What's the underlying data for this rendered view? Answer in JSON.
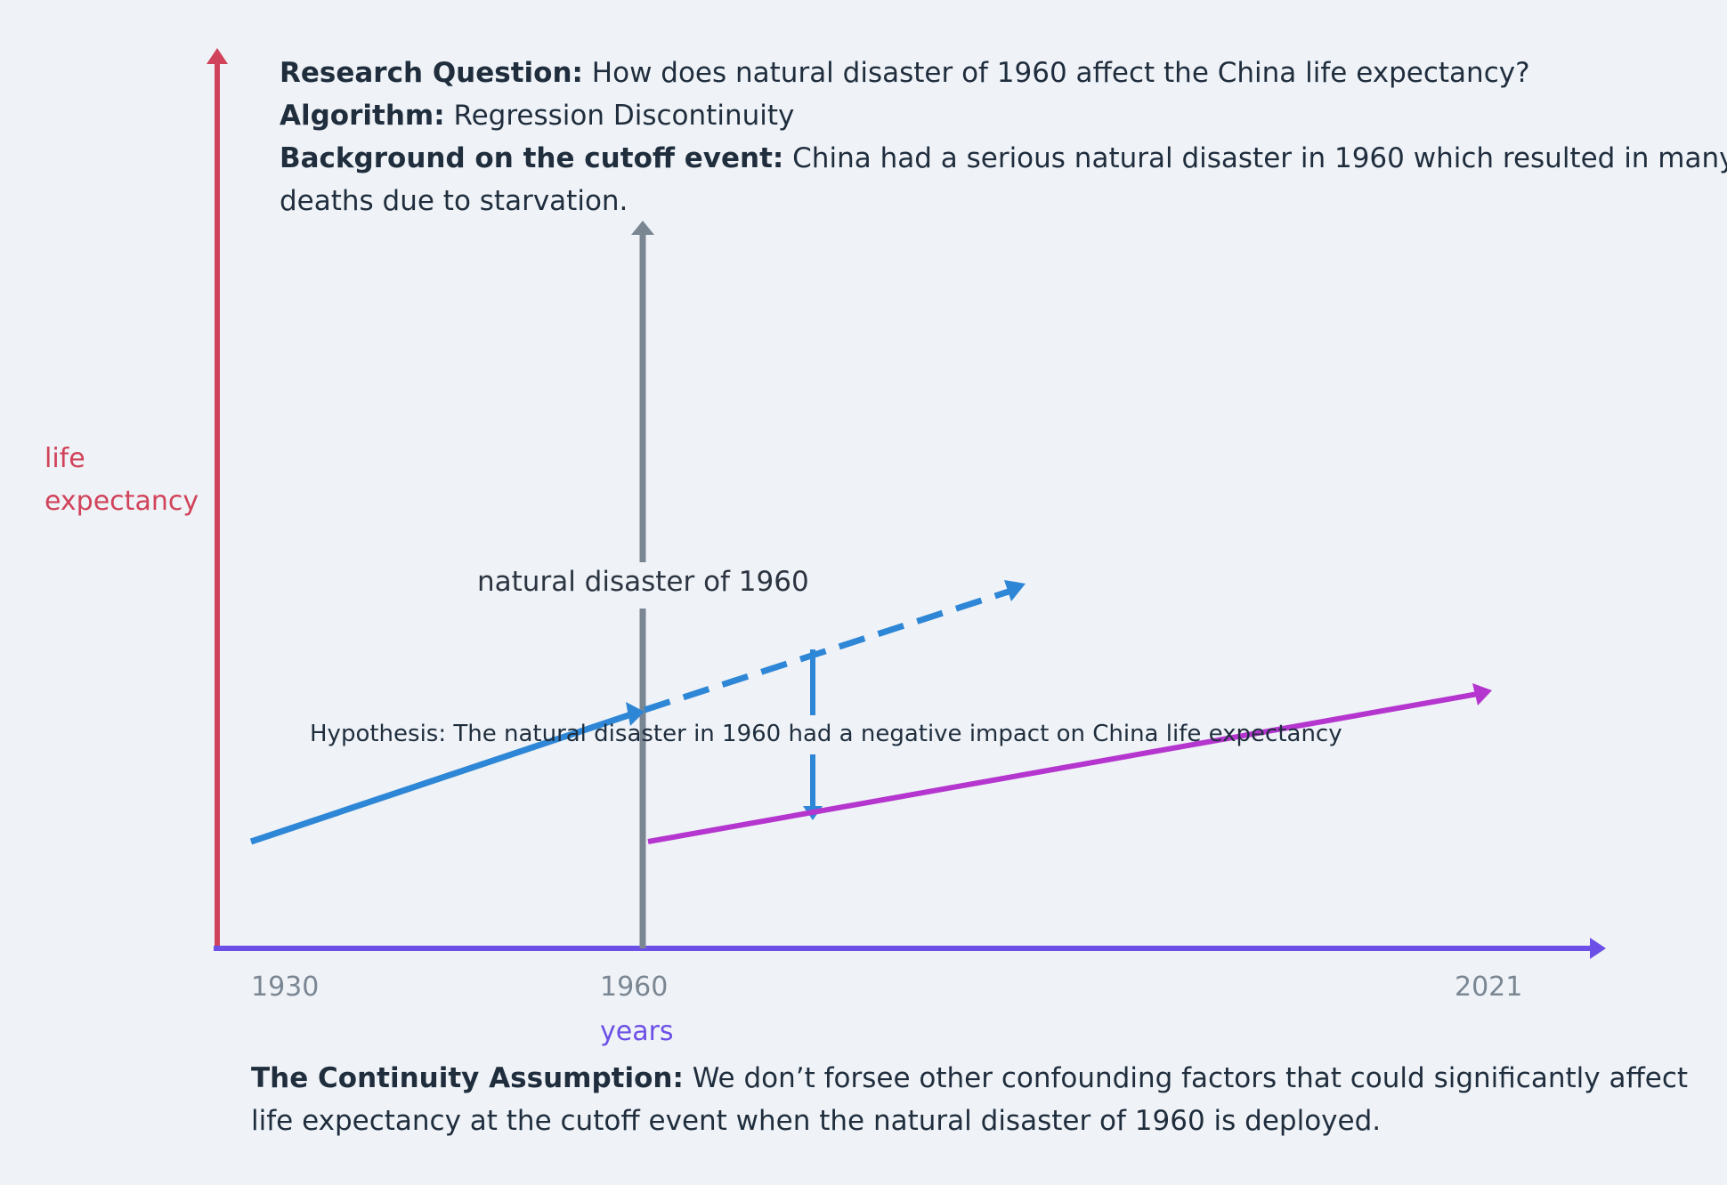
{
  "header": {
    "research_question_label": "Research Question:",
    "research_question_text": " How does natural disaster of 1960 affect the China life expectancy?",
    "algorithm_label": "Algorithm:",
    "algorithm_text": " Regression Discontinuity",
    "background_label": "Background on the cutoff event:",
    "background_text_1": " China had a serious natural disaster in 1960 which resulted in many",
    "background_text_2": "deaths due to starvation."
  },
  "axes": {
    "y_label_1": "life",
    "y_label_2": "expectancy",
    "x_label": "years",
    "ticks": [
      "1930",
      "1960",
      "2021"
    ]
  },
  "event_label": "natural disaster of 1960",
  "hypothesis": "Hypothesis: The natural disaster in 1960 had a negative impact on China life expectancy",
  "footer": {
    "assumption_label": "The Continuity Assumption:",
    "assumption_text_1": " We don’t forsee other confounding factors that could significantly affect",
    "assumption_text_2": "life expectancy at the cutoff event when the natural disaster of 1960 is deployed."
  },
  "colors": {
    "y_axis": "#d1435b",
    "x_axis": "#6c4fe6",
    "cutoff_line": "#7b8693",
    "pre_trend": "#2e86d6",
    "post_trend": "#b535cf"
  }
}
